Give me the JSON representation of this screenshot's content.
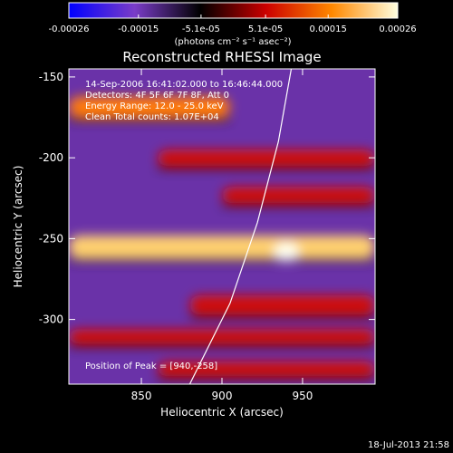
{
  "chart_data": {
    "type": "heatmap",
    "title": "Reconstructed RHESSI Image",
    "xlabel": "Heliocentric X (arcsec)",
    "ylabel": "Heliocentric Y (arcsec)",
    "xlim": [
      805,
      995
    ],
    "ylim": [
      -340,
      -145
    ],
    "x_ticks": [
      850,
      900,
      950
    ],
    "y_ticks": [
      -150,
      -200,
      -250,
      -300
    ],
    "colorbar": {
      "range": [
        -0.00026,
        0.00026
      ],
      "tick_values": [
        -0.00026,
        -0.00015,
        -5.1e-05,
        5.1e-05,
        0.00015,
        0.00026
      ],
      "tick_labels": [
        "-0.00026",
        "-0.00015",
        "-5.1e-05",
        "5.1e-05",
        "0.00015",
        "0.00026"
      ],
      "unit_label": "(photons cm⁻² s⁻¹ asec⁻²)",
      "colormap": [
        "#0000ff",
        "#7a3cc8",
        "#000000",
        "#cc0000",
        "#ff8800",
        "#ffffe0"
      ]
    },
    "annotations": [
      "14-Sep-2006 16:41:02.000 to 16:46:44.000",
      "Detectors: 4F 5F 6F 7F 8F, Att 0",
      "Energy Range: 12.0 - 25.0 keV",
      "Clean    Total counts: 1.07E+04",
      "Position of Peak = [940,-258]"
    ],
    "peak": {
      "x": 940,
      "y": -258
    },
    "limb_curve": [
      [
        880,
        -340
      ],
      [
        905,
        -290
      ],
      [
        922,
        -240
      ],
      [
        935,
        -190
      ],
      [
        943,
        -145
      ]
    ],
    "bright_bands": [
      {
        "x": [
          805,
          905
        ],
        "y": [
          -175,
          -162
        ],
        "value": 0.8
      },
      {
        "x": [
          860,
          995
        ],
        "y": [
          -205,
          -195
        ],
        "value": 0.65
      },
      {
        "x": [
          900,
          995
        ],
        "y": [
          -228,
          -218
        ],
        "value": 0.7
      },
      {
        "x": [
          805,
          995
        ],
        "y": [
          -262,
          -248
        ],
        "value": 0.9
      },
      {
        "x": [
          880,
          995
        ],
        "y": [
          -297,
          -285
        ],
        "value": 0.65
      },
      {
        "x": [
          805,
          995
        ],
        "y": [
          -315,
          -306
        ],
        "value": 0.6
      },
      {
        "x": [
          860,
          995
        ],
        "y": [
          -335,
          -326
        ],
        "value": 0.55
      }
    ]
  },
  "footer": {
    "timestamp": "18-Jul-2013 21:58"
  }
}
